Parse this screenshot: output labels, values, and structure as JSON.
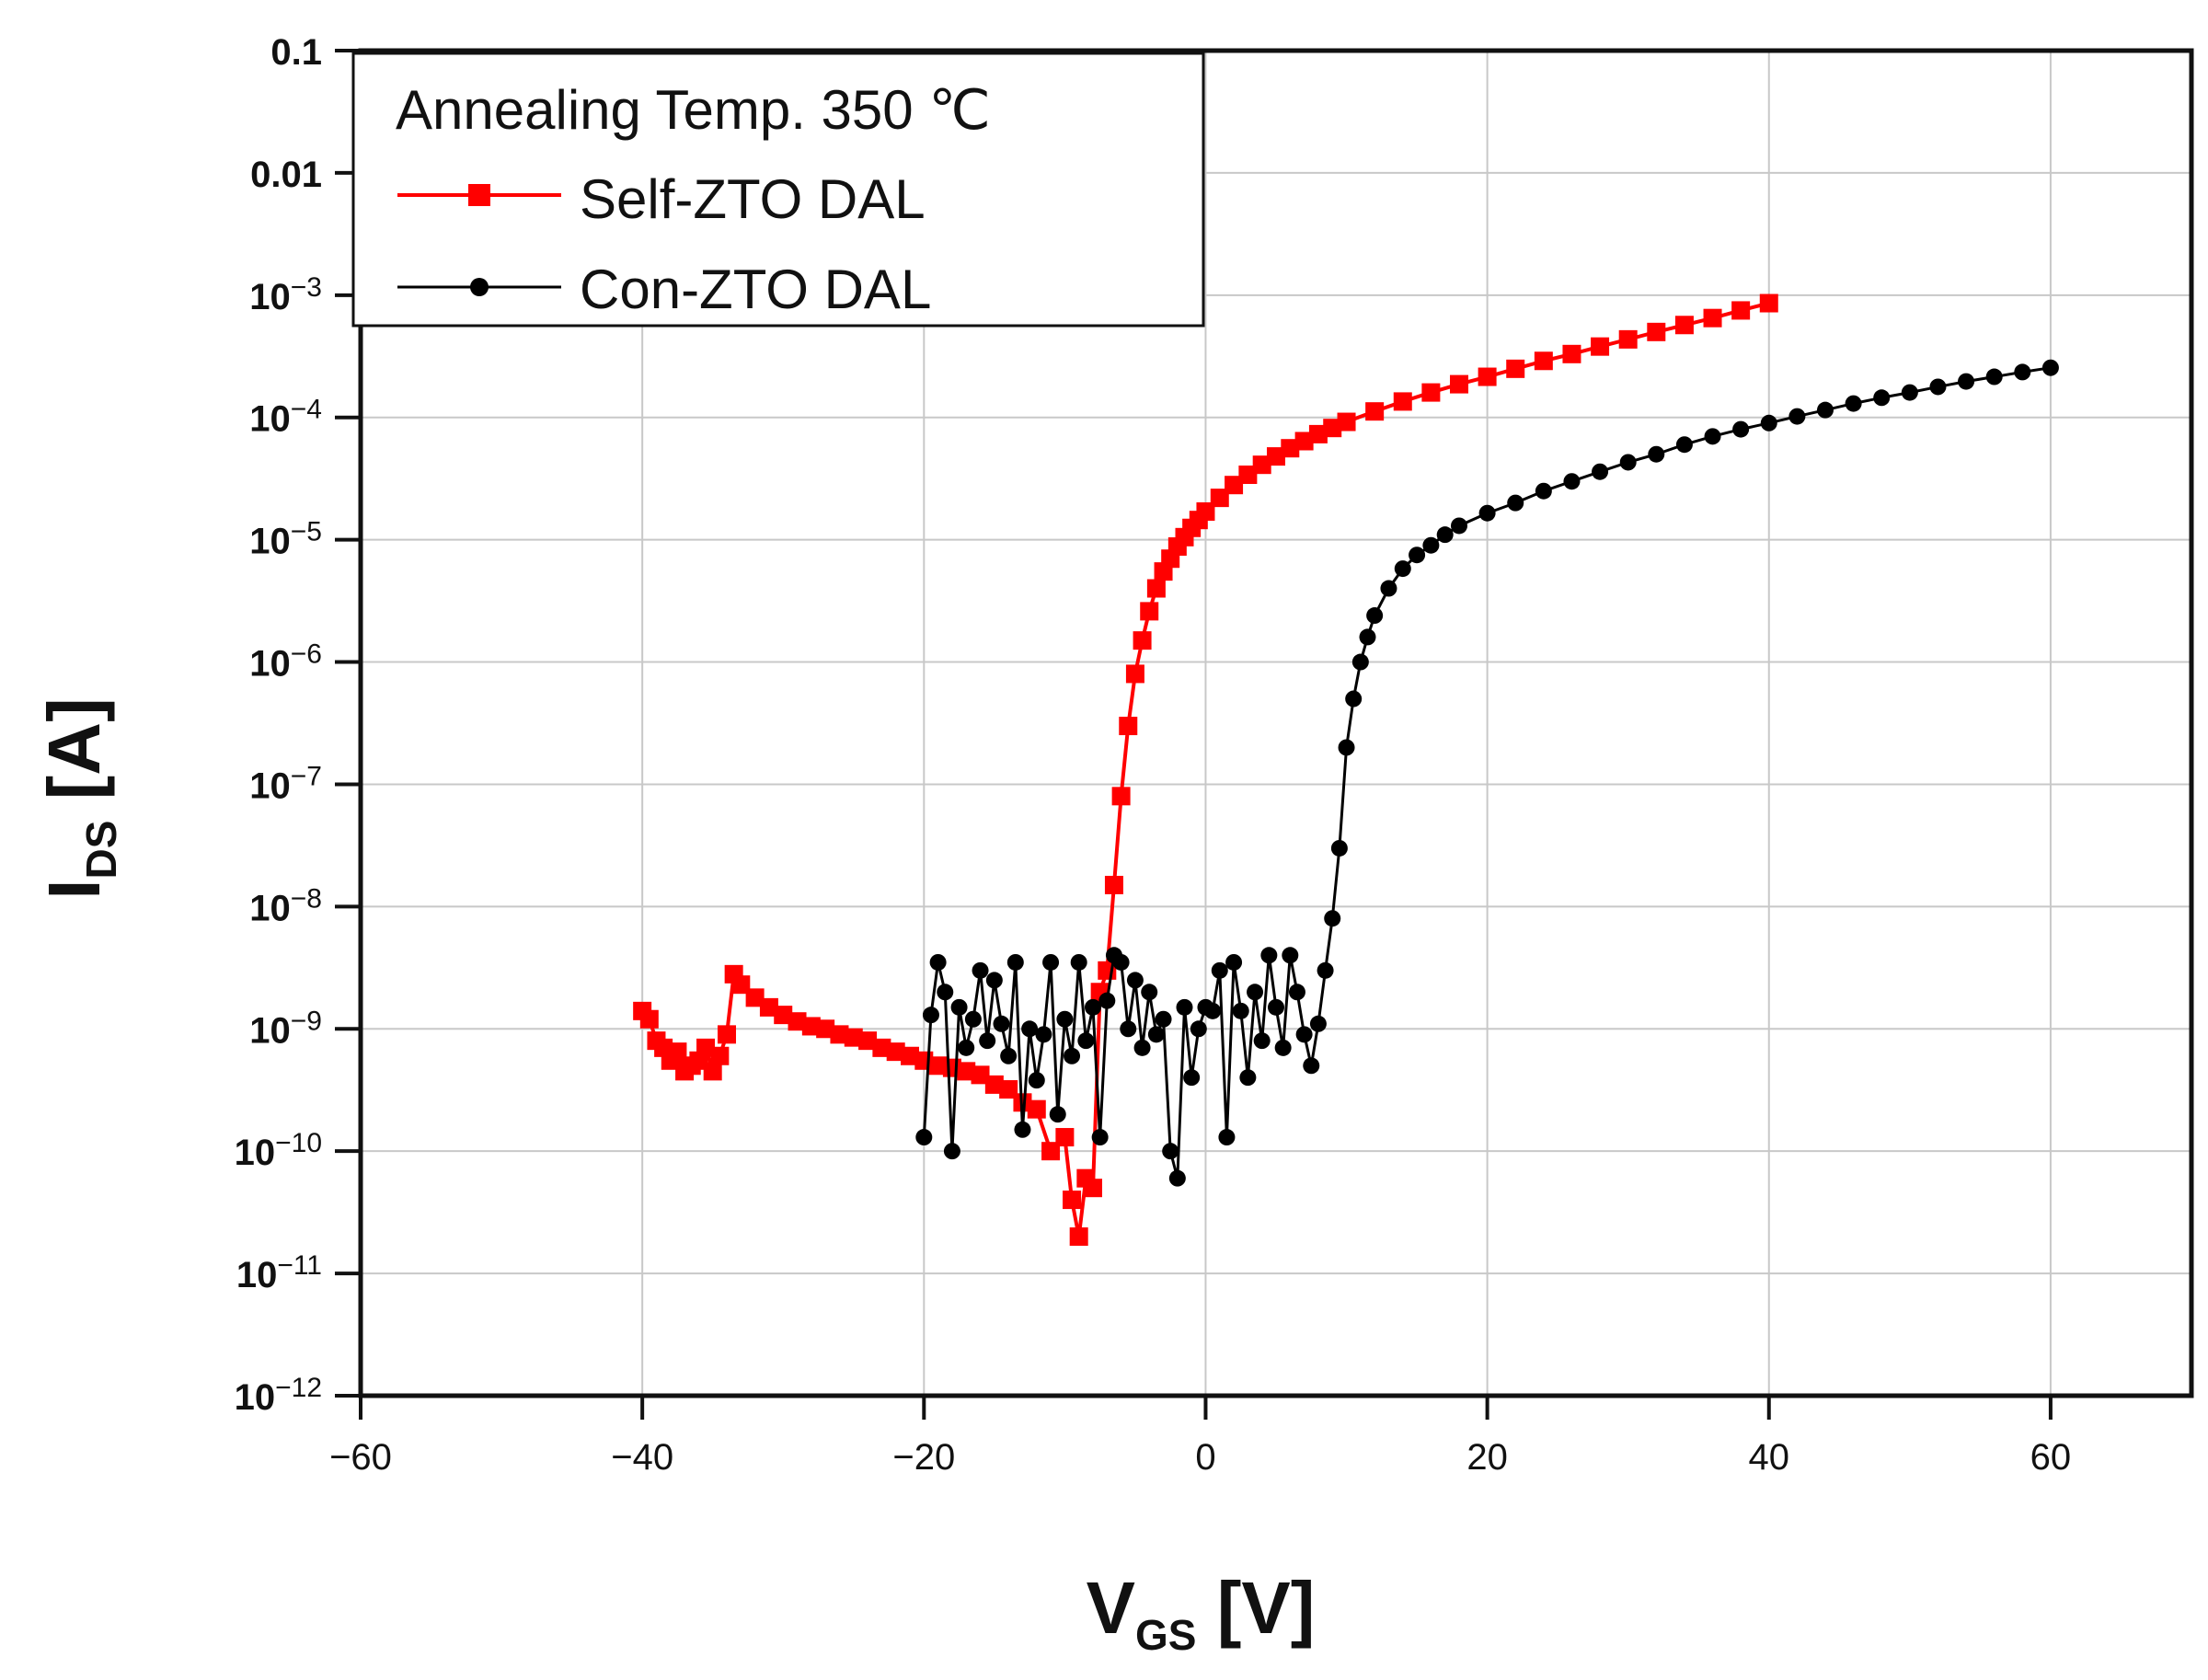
{
  "chart_data": {
    "type": "scatter",
    "title": "",
    "xlabel": {
      "main": "V",
      "sub": "GS",
      "unit": "[V]"
    },
    "ylabel": {
      "main": "I",
      "sub": "DS",
      "unit": "[A]"
    },
    "xlim": [
      -60,
      70
    ],
    "ylim_log10": [
      -12,
      -1
    ],
    "yscale": "log",
    "grid": true,
    "x_ticks": [
      {
        "value": -60,
        "label": "−60"
      },
      {
        "value": -40,
        "label": "−40"
      },
      {
        "value": -20,
        "label": "−20"
      },
      {
        "value": 0,
        "label": "0"
      },
      {
        "value": 20,
        "label": "20"
      },
      {
        "value": 40,
        "label": "40"
      },
      {
        "value": 60,
        "label": "60"
      }
    ],
    "y_ticks": [
      {
        "exp": -1,
        "plain": "0.1"
      },
      {
        "exp": -2,
        "plain": "0.01"
      },
      {
        "exp": -3,
        "base": "10",
        "sup": "−3"
      },
      {
        "exp": -4,
        "base": "10",
        "sup": "−4"
      },
      {
        "exp": -5,
        "base": "10",
        "sup": "−5"
      },
      {
        "exp": -6,
        "base": "10",
        "sup": "−6"
      },
      {
        "exp": -7,
        "base": "10",
        "sup": "−7"
      },
      {
        "exp": -8,
        "base": "10",
        "sup": "−8"
      },
      {
        "exp": -9,
        "base": "10",
        "sup": "−9"
      },
      {
        "exp": -10,
        "base": "10",
        "sup": "−10"
      },
      {
        "exp": -11,
        "base": "10",
        "sup": "−11"
      },
      {
        "exp": -12,
        "base": "10",
        "sup": "−12"
      }
    ],
    "legend": {
      "title": "Annealing Temp. 350 ℃",
      "placement": "top-left"
    },
    "series": [
      {
        "name": "Self-ZTO DAL",
        "color": "#ff0000",
        "marker": "square",
        "x": [
          -40,
          -39.5,
          -39,
          -38.5,
          -38,
          -37.5,
          -37,
          -36.5,
          -36,
          -35.5,
          -35,
          -34.5,
          -34,
          -33.5,
          -33,
          -32,
          -31,
          -30,
          -29,
          -28,
          -27,
          -26,
          -25,
          -24,
          -23,
          -22,
          -21,
          -20,
          -19,
          -18,
          -17,
          -16,
          -15,
          -14,
          -13,
          -12,
          -11,
          -10,
          -9.5,
          -9,
          -8.5,
          -8,
          -7.5,
          -7,
          -6.5,
          -6,
          -5.5,
          -5,
          -4.5,
          -4,
          -3.5,
          -3,
          -2.5,
          -2,
          -1.5,
          -1,
          -0.5,
          0,
          1,
          2,
          3,
          4,
          5,
          6,
          7,
          8,
          9,
          10,
          12,
          14,
          16,
          18,
          20,
          22,
          24,
          26,
          28,
          30,
          32,
          34,
          36,
          38,
          40
        ],
        "y": [
          1.4e-09,
          1.2e-09,
          8e-10,
          7e-10,
          5.5e-10,
          6.5e-10,
          4.5e-10,
          5e-10,
          5.5e-10,
          7e-10,
          4.5e-10,
          6e-10,
          9e-10,
          2.8e-09,
          2.3e-09,
          1.8e-09,
          1.5e-09,
          1.3e-09,
          1.15e-09,
          1.05e-09,
          1e-09,
          9e-10,
          8.5e-10,
          8e-10,
          7e-10,
          6.5e-10,
          6e-10,
          5.5e-10,
          5e-10,
          4.8e-10,
          4.5e-10,
          4.2e-10,
          3.5e-10,
          3.2e-10,
          2.5e-10,
          2.2e-10,
          1e-10,
          1.3e-10,
          4e-11,
          2e-11,
          6e-11,
          5e-11,
          2e-09,
          3e-09,
          1.5e-08,
          8e-08,
          3e-07,
          8e-07,
          1.5e-06,
          2.6e-06,
          4e-06,
          5.5e-06,
          7e-06,
          8.8e-06,
          1.05e-05,
          1.25e-05,
          1.45e-05,
          1.7e-05,
          2.2e-05,
          2.8e-05,
          3.4e-05,
          4.1e-05,
          4.8e-05,
          5.6e-05,
          6.4e-05,
          7.3e-05,
          8.2e-05,
          9.2e-05,
          0.000112,
          0.000135,
          0.00016,
          0.000187,
          0.000215,
          0.00025,
          0.00029,
          0.00033,
          0.00038,
          0.000435,
          0.0005,
          0.00057,
          0.00065,
          0.00075,
          0.00086
        ]
      },
      {
        "name": "Con-ZTO DAL",
        "color": "#000000",
        "marker": "circle",
        "x": [
          -20,
          -19.5,
          -19,
          -18.5,
          -18,
          -17.5,
          -17,
          -16.5,
          -16,
          -15.5,
          -15,
          -14.5,
          -14,
          -13.5,
          -13,
          -12.5,
          -12,
          -11.5,
          -11,
          -10.5,
          -10,
          -9.5,
          -9,
          -8.5,
          -8,
          -7.5,
          -7,
          -6.5,
          -6,
          -5.5,
          -5,
          -4.5,
          -4,
          -3.5,
          -3,
          -2.5,
          -2,
          -1.5,
          -1,
          -0.5,
          0,
          0.5,
          1,
          1.5,
          2,
          2.5,
          3,
          3.5,
          4,
          4.5,
          5,
          5.5,
          6,
          6.5,
          7,
          7.5,
          8,
          8.5,
          9,
          9.5,
          10,
          10.5,
          11,
          11.5,
          12,
          13,
          14,
          15,
          16,
          17,
          18,
          20,
          22,
          24,
          26,
          28,
          30,
          32,
          34,
          36,
          38,
          40,
          42,
          44,
          46,
          48,
          50,
          52,
          54,
          56,
          58,
          60
        ],
        "y": [
          1.3e-10,
          1.3e-09,
          3.5e-09,
          2e-09,
          1e-10,
          1.5e-09,
          7e-10,
          1.2e-09,
          3e-09,
          8e-10,
          2.5e-09,
          1.1e-09,
          6e-10,
          3.5e-09,
          1.5e-10,
          1e-09,
          3.8e-10,
          9e-10,
          3.5e-09,
          2e-10,
          1.2e-09,
          6e-10,
          3.5e-09,
          8e-10,
          1.5e-09,
          1.3e-10,
          1.7e-09,
          4e-09,
          3.5e-09,
          1e-09,
          2.5e-09,
          7e-10,
          2e-09,
          9e-10,
          1.2e-09,
          1e-10,
          6e-11,
          1.5e-09,
          4e-10,
          1e-09,
          1.5e-09,
          1.4e-09,
          3e-09,
          1.3e-10,
          3.5e-09,
          1.4e-09,
          4e-10,
          2e-09,
          8e-10,
          4e-09,
          1.5e-09,
          7e-10,
          4e-09,
          2e-09,
          9e-10,
          5e-10,
          1.1e-09,
          3e-09,
          8e-09,
          3e-08,
          2e-07,
          5e-07,
          1e-06,
          1.6e-06,
          2.4e-06,
          4e-06,
          5.8e-06,
          7.5e-06,
          9e-06,
          1.1e-05,
          1.3e-05,
          1.65e-05,
          2e-05,
          2.5e-05,
          3e-05,
          3.6e-05,
          4.3e-05,
          5e-05,
          6e-05,
          7e-05,
          8e-05,
          9e-05,
          0.000102,
          0.000115,
          0.00013,
          0.000145,
          0.00016,
          0.000178,
          0.000197,
          0.000215,
          0.000235,
          0.000255
        ]
      }
    ]
  }
}
